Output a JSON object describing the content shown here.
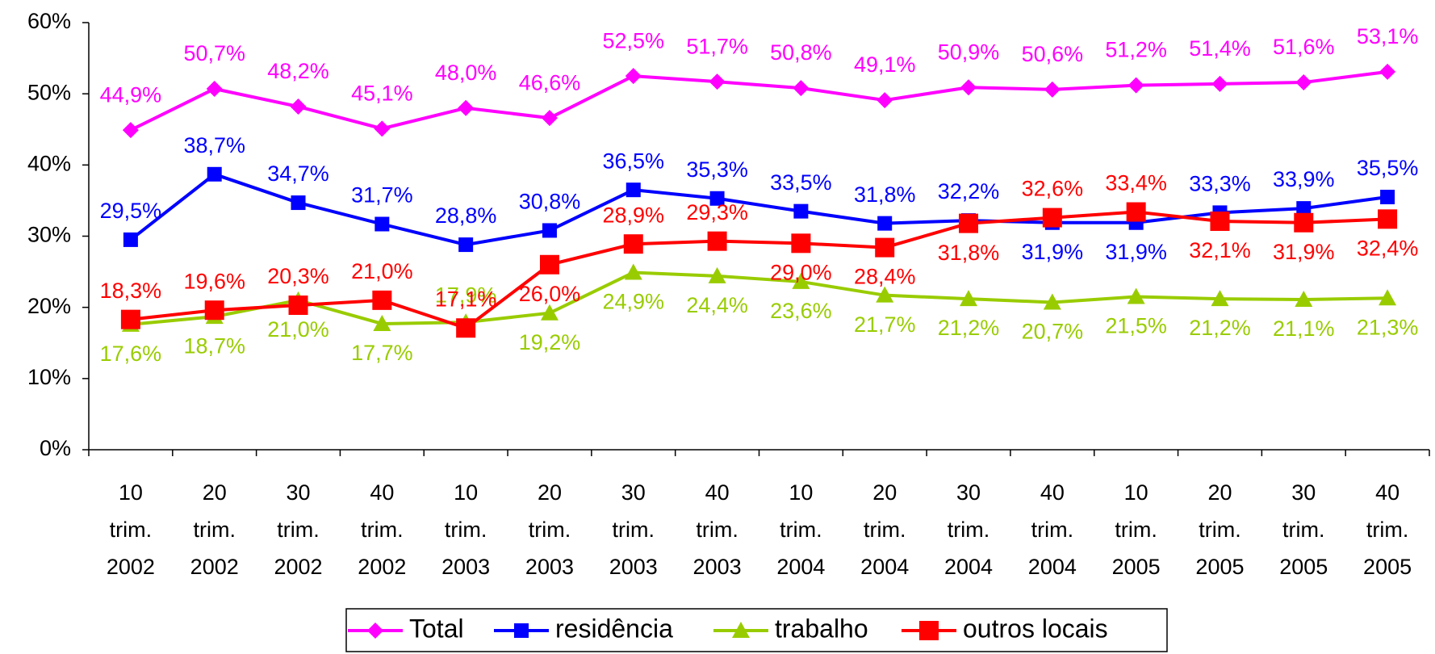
{
  "chart_data": {
    "type": "line",
    "categories": [
      [
        "10",
        "trim.",
        "2002"
      ],
      [
        "20",
        "trim.",
        "2002"
      ],
      [
        "30",
        "trim.",
        "2002"
      ],
      [
        "40",
        "trim.",
        "2002"
      ],
      [
        "10",
        "trim.",
        "2003"
      ],
      [
        "20",
        "trim.",
        "2003"
      ],
      [
        "30",
        "trim.",
        "2003"
      ],
      [
        "40",
        "trim.",
        "2003"
      ],
      [
        "10",
        "trim.",
        "2004"
      ],
      [
        "20",
        "trim.",
        "2004"
      ],
      [
        "30",
        "trim.",
        "2004"
      ],
      [
        "40",
        "trim.",
        "2004"
      ],
      [
        "10",
        "trim.",
        "2005"
      ],
      [
        "20",
        "trim.",
        "2005"
      ],
      [
        "30",
        "trim.",
        "2005"
      ],
      [
        "40",
        "trim.",
        "2005"
      ]
    ],
    "series": [
      {
        "name": "Total",
        "color": "#ff00ff",
        "marker": "diamond",
        "values": [
          44.9,
          50.7,
          48.2,
          45.1,
          48.0,
          46.6,
          52.5,
          51.7,
          50.8,
          49.1,
          50.9,
          50.6,
          51.2,
          51.4,
          51.6,
          53.1
        ],
        "value_labels": [
          "44,9%",
          "50,7%",
          "48,2%",
          "45,1%",
          "48,0%",
          "46,6%",
          "52,5%",
          "51,7%",
          "50,8%",
          "49,1%",
          "50,9%",
          "50,6%",
          "51,2%",
          "51,4%",
          "51,6%",
          "53,1%"
        ]
      },
      {
        "name": "residência",
        "color": "#0000ff",
        "marker": "square",
        "values": [
          29.5,
          38.7,
          34.7,
          31.7,
          28.8,
          30.8,
          36.5,
          35.3,
          33.5,
          31.8,
          32.2,
          31.9,
          31.9,
          33.3,
          33.9,
          35.5
        ],
        "value_labels": [
          "29,5%",
          "38,7%",
          "34,7%",
          "31,7%",
          "28,8%",
          "30,8%",
          "36,5%",
          "35,3%",
          "33,5%",
          "31,8%",
          "32,2%",
          "31,9%",
          "31,9%",
          "33,3%",
          "33,9%",
          "35,5%"
        ]
      },
      {
        "name": "trabalho",
        "color": "#99cc00",
        "marker": "triangle",
        "values": [
          17.6,
          18.7,
          21.0,
          17.7,
          17.9,
          19.2,
          24.9,
          24.4,
          23.6,
          21.7,
          21.2,
          20.7,
          21.5,
          21.2,
          21.1,
          21.3
        ],
        "value_labels": [
          "17,6%",
          "18,7%",
          "21,0%",
          "17,7%",
          "17,9%",
          "19,2%",
          "24,9%",
          "24,4%",
          "23,6%",
          "21,7%",
          "21,2%",
          "20,7%",
          "21,5%",
          "21,2%",
          "21,1%",
          "21,3%"
        ]
      },
      {
        "name": "outros locais",
        "color": "#ff0000",
        "marker": "bigsquare",
        "values": [
          18.3,
          19.6,
          20.3,
          21.0,
          17.1,
          26.0,
          28.9,
          29.3,
          29.0,
          28.4,
          31.8,
          32.6,
          33.4,
          32.1,
          31.9,
          32.4
        ],
        "value_labels": [
          "18,3%",
          "19,6%",
          "20,3%",
          "21,0%",
          "17,1%",
          "26,0%",
          "28,9%",
          "29,3%",
          "29,0%",
          "28,4%",
          "31,8%",
          "32,6%",
          "33,4%",
          "32,1%",
          "31,9%",
          "32,4%"
        ]
      }
    ],
    "ylim": [
      0,
      60
    ],
    "yticks": [
      {
        "value": 0,
        "label": "0%"
      },
      {
        "value": 10,
        "label": "10%"
      },
      {
        "value": 20,
        "label": "20%"
      },
      {
        "value": 30,
        "label": "30%"
      },
      {
        "value": 40,
        "label": "40%"
      },
      {
        "value": 50,
        "label": "50%"
      },
      {
        "value": 60,
        "label": "60%"
      }
    ],
    "legend": "bottom"
  }
}
